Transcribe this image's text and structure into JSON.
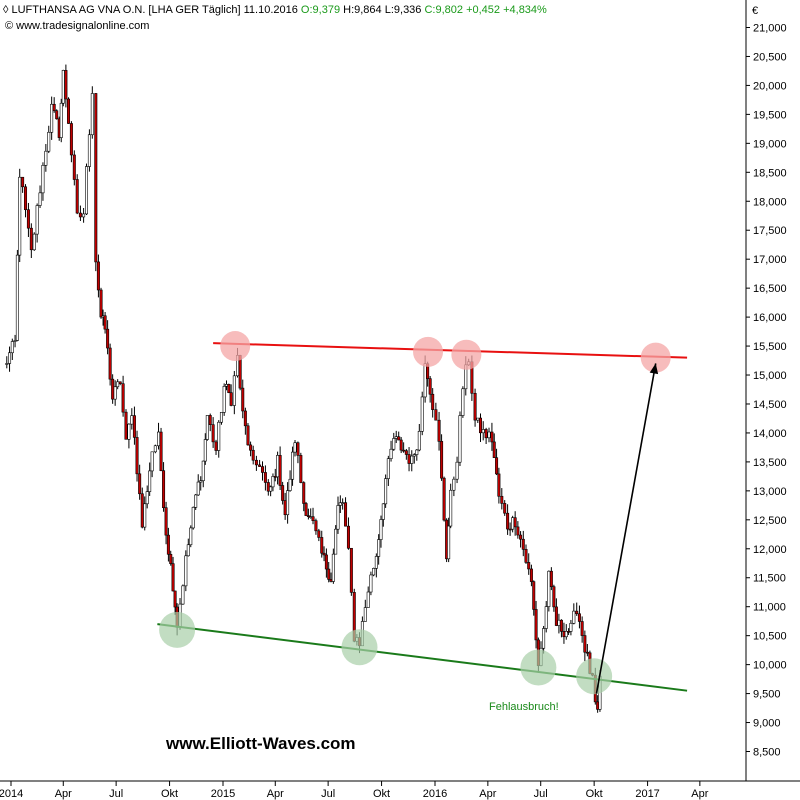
{
  "header": {
    "instrument": "LUFTHANSA AG VNA O.N. [LHA GER  Täglich]",
    "date": "11.10.2016",
    "open": "O:9,379",
    "high": "H:9,864",
    "low": "L:9,336",
    "close": "C:9,802",
    "change": "+0,452",
    "change_pct": "+4,834%",
    "source": "© www.tradesignalonline.com"
  },
  "colors": {
    "resistance": "#e81010",
    "support": "#1a7a1a",
    "bull_candle": "#ffffff",
    "bear_candle": "#c00000",
    "wick": "#000000",
    "top_marker": "#f4a6a6",
    "bottom_marker": "#a8cfa8"
  },
  "chart_data": {
    "type": "candlestick",
    "title": "LUFTHANSA AG VNA O.N. [LHA GER  Täglich]",
    "y_unit": "€",
    "ylim": [
      8000,
      21500
    ],
    "y_ticks": [
      "21,000",
      "20,500",
      "20,000",
      "19,500",
      "19,000",
      "18,500",
      "18,000",
      "17,500",
      "17,000",
      "16,500",
      "16,000",
      "15,500",
      "15,000",
      "14,500",
      "14,000",
      "13,500",
      "13,000",
      "12,500",
      "12,000",
      "11,500",
      "11,000",
      "10,500",
      "10,000",
      "9,500",
      "9,000",
      "8,500"
    ],
    "y_tick_values": [
      21000,
      20500,
      20000,
      19500,
      19000,
      18500,
      18000,
      17500,
      17000,
      16500,
      16000,
      15500,
      15000,
      14500,
      14000,
      13500,
      13000,
      12500,
      12000,
      11500,
      11000,
      10500,
      10000,
      9500,
      9000,
      8500
    ],
    "x_ticks": [
      "2014",
      "Apr",
      "Jul",
      "Okt",
      "2015",
      "Apr",
      "Jul",
      "Okt",
      "2016",
      "Apr",
      "Jul",
      "Okt",
      "2017",
      "Apr"
    ],
    "x_tick_dates": [
      "2014-01-01",
      "2014-04-01",
      "2014-07-01",
      "2014-10-01",
      "2015-01-01",
      "2015-04-01",
      "2015-07-01",
      "2015-10-01",
      "2016-01-01",
      "2016-04-01",
      "2016-07-01",
      "2016-10-01",
      "2017-01-01",
      "2017-04-01"
    ],
    "price_path": [
      [
        "2013-12-20",
        15150
      ],
      [
        "2014-01-08",
        15550
      ],
      [
        "2014-01-16",
        18500
      ],
      [
        "2014-02-05",
        17100
      ],
      [
        "2014-02-25",
        18600
      ],
      [
        "2014-03-12",
        19600
      ],
      [
        "2014-03-25",
        19200
      ],
      [
        "2014-04-01",
        20200
      ],
      [
        "2014-04-10",
        19400
      ],
      [
        "2014-04-25",
        17700
      ],
      [
        "2014-05-06",
        17800
      ],
      [
        "2014-05-21",
        19950
      ],
      [
        "2014-05-27",
        17000
      ],
      [
        "2014-06-05",
        16000
      ],
      [
        "2014-06-12",
        15800
      ],
      [
        "2014-06-25",
        14600
      ],
      [
        "2014-07-08",
        14900
      ],
      [
        "2014-07-18",
        13800
      ],
      [
        "2014-07-28",
        14400
      ],
      [
        "2014-08-15",
        12400
      ],
      [
        "2014-09-01",
        13700
      ],
      [
        "2014-09-12",
        13900
      ],
      [
        "2014-09-25",
        12300
      ],
      [
        "2014-10-07",
        11400
      ],
      [
        "2014-10-14",
        10700
      ],
      [
        "2014-10-29",
        11800
      ],
      [
        "2014-11-15",
        12900
      ],
      [
        "2014-11-28",
        13500
      ],
      [
        "2014-12-05",
        14300
      ],
      [
        "2014-12-20",
        13700
      ],
      [
        "2015-01-03",
        14800
      ],
      [
        "2015-01-15",
        14600
      ],
      [
        "2015-01-26",
        15300
      ],
      [
        "2015-02-04",
        14300
      ],
      [
        "2015-02-22",
        13400
      ],
      [
        "2015-03-05",
        13500
      ],
      [
        "2015-03-20",
        12900
      ],
      [
        "2015-04-05",
        13500
      ],
      [
        "2015-04-18",
        12600
      ],
      [
        "2015-05-05",
        13900
      ],
      [
        "2015-05-20",
        12800
      ],
      [
        "2015-06-05",
        12400
      ],
      [
        "2015-06-20",
        11900
      ],
      [
        "2015-07-06",
        11500
      ],
      [
        "2015-07-18",
        12700
      ],
      [
        "2015-07-26",
        12800
      ],
      [
        "2015-08-05",
        11900
      ],
      [
        "2015-08-15",
        10500
      ],
      [
        "2015-08-24",
        10400
      ],
      [
        "2015-09-08",
        11300
      ],
      [
        "2015-09-22",
        11900
      ],
      [
        "2015-10-08",
        13200
      ],
      [
        "2015-10-22",
        13900
      ],
      [
        "2015-11-08",
        13700
      ],
      [
        "2015-11-22",
        13500
      ],
      [
        "2015-12-05",
        14000
      ],
      [
        "2015-12-15",
        15300
      ],
      [
        "2015-12-28",
        14500
      ],
      [
        "2016-01-08",
        13800
      ],
      [
        "2016-01-21",
        11900
      ],
      [
        "2016-01-28",
        12900
      ],
      [
        "2016-02-08",
        13600
      ],
      [
        "2016-02-18",
        14800
      ],
      [
        "2016-02-28",
        15300
      ],
      [
        "2016-03-10",
        14200
      ],
      [
        "2016-03-24",
        14000
      ],
      [
        "2016-04-08",
        13900
      ],
      [
        "2016-04-20",
        12900
      ],
      [
        "2016-05-05",
        12400
      ],
      [
        "2016-05-18",
        12500
      ],
      [
        "2016-06-01",
        12000
      ],
      [
        "2016-06-15",
        11400
      ],
      [
        "2016-06-27",
        10000
      ],
      [
        "2016-07-06",
        10600
      ],
      [
        "2016-07-15",
        11500
      ],
      [
        "2016-07-28",
        10700
      ],
      [
        "2016-08-10",
        10600
      ],
      [
        "2016-08-22",
        10600
      ],
      [
        "2016-09-01",
        11000
      ],
      [
        "2016-09-15",
        10300
      ],
      [
        "2016-09-28",
        9700
      ],
      [
        "2016-10-03",
        9300
      ],
      [
        "2016-10-07",
        9100
      ],
      [
        "2016-10-11",
        9802
      ]
    ],
    "annotations": {
      "resistance_line": {
        "start": [
          "2014-12-15",
          15550
        ],
        "end": [
          "2017-03-10",
          15300
        ]
      },
      "support_line": {
        "start": [
          "2014-09-10",
          10700
        ],
        "end": [
          "2017-03-10",
          9550
        ]
      },
      "tops": [
        [
          "2015-01-22",
          15500
        ],
        [
          "2015-12-20",
          15400
        ],
        [
          "2016-02-24",
          15350
        ],
        [
          "2017-01-15",
          15300
        ]
      ],
      "bottoms": [
        [
          "2014-10-14",
          10600
        ],
        [
          "2015-08-24",
          10300
        ],
        [
          "2016-06-27",
          9950
        ],
        [
          "2016-10-01",
          9800
        ]
      ],
      "target_arrow": {
        "from": [
          "2016-10-05",
          9500
        ],
        "to": [
          "2017-01-15",
          15200
        ]
      },
      "false_break_label": "Fehlausbruch!"
    },
    "watermark": "www.Elliott-Waves.com"
  }
}
